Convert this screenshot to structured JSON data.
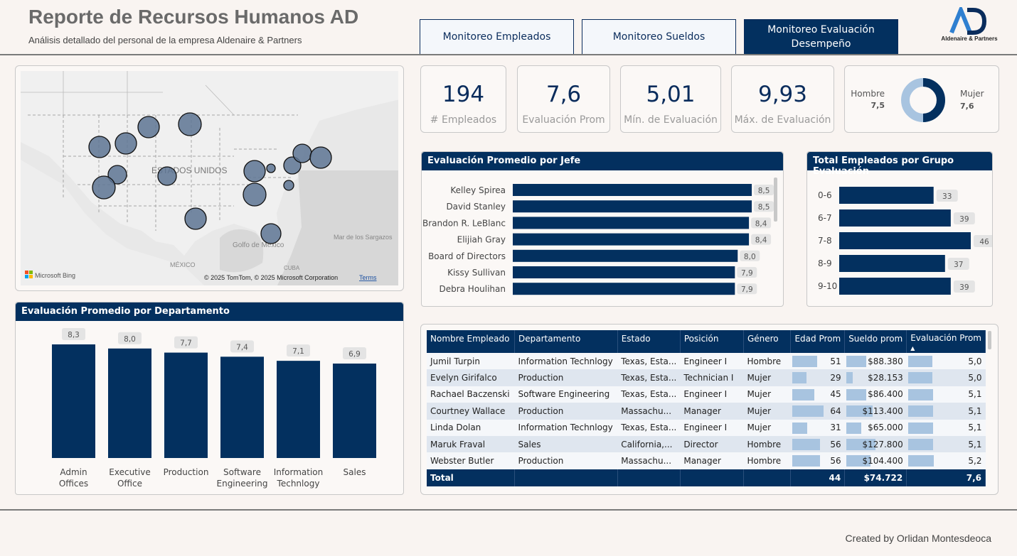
{
  "header": {
    "title": "Reporte de Recursos Humanos AD",
    "subtitle": "Análisis detallado del personal de la empresa Aldenaire & Partners",
    "logo_text": "Aldenaire & Partners",
    "logo_mark": "AD"
  },
  "nav": {
    "tab1": "Monitoreo Empleados",
    "tab2": "Monitoreo Sueldos",
    "tab3_line1": "Monitoreo Evaluación",
    "tab3_line2": "Desempeño"
  },
  "kpis": {
    "employees": {
      "value": "194",
      "label": "# Empleados"
    },
    "avg_eval": {
      "value": "7,6",
      "label": "Evaluación Prom"
    },
    "min_eval": {
      "value": "5,01",
      "label": "Mín. de Evaluación"
    },
    "max_eval": {
      "value": "9,93",
      "label": "Máx. de Evaluación"
    }
  },
  "gender": {
    "male_label": "Hombre",
    "male_value": "7,5",
    "female_label": "Mujer",
    "female_value": "7,6",
    "male_color": "#a8c4e0",
    "female_color": "#03305f"
  },
  "map": {
    "country_label": "ESTADOS UNIDOS",
    "gulf_label": "Golfo de México",
    "mexico_label": "MÉXICO",
    "cuba_label": "CUBA",
    "sea_label": "Mar de los Sargazos",
    "bing_label": "Microsoft Bing",
    "copyright": "© 2025 TomTom, © 2025 Microsoft Corporation",
    "terms": "Terms"
  },
  "chart_data": [
    {
      "type": "bar",
      "orientation": "horizontal",
      "title": "Evaluación Promedio por Jefe",
      "categories": [
        "Kelley Spirea",
        "David Stanley",
        "Brandon R. LeBlanc",
        "Elijiah Gray",
        "Board of Directors",
        "Kissy Sullivan",
        "Debra Houlihan"
      ],
      "values": [
        8.5,
        8.5,
        8.4,
        8.4,
        8.0,
        7.9,
        7.9
      ],
      "labels": [
        "8,5",
        "8,5",
        "8,4",
        "8,4",
        "8,0",
        "7,9",
        "7,9"
      ],
      "color": "#03305f"
    },
    {
      "type": "bar",
      "orientation": "horizontal",
      "title": "Total Empleados por Grupo Evaluación",
      "categories": [
        "0-6",
        "6-7",
        "7-8",
        "8-9",
        "9-10"
      ],
      "values": [
        33,
        39,
        46,
        37,
        39
      ],
      "color": "#03305f"
    },
    {
      "type": "bar",
      "orientation": "vertical",
      "title": "Evaluación Promedio por Departamento",
      "categories": [
        [
          "Admin",
          "Offices"
        ],
        [
          "Executive",
          "Office"
        ],
        [
          "Production"
        ],
        [
          "Software",
          "Engineering"
        ],
        [
          "Information",
          "Technlogy"
        ],
        [
          "Sales"
        ]
      ],
      "values": [
        8.3,
        8.0,
        7.7,
        7.4,
        7.1,
        6.9
      ],
      "labels": [
        "8,3",
        "8,0",
        "7,7",
        "7,4",
        "7,1",
        "6,9"
      ],
      "color": "#03305f"
    }
  ],
  "table": {
    "columns": [
      "Nombre Empleado",
      "Departamento",
      "Estado",
      "Posición",
      "Género",
      "Edad Prom",
      "Sueldo prom",
      "Evaluación Prom"
    ],
    "sort_indicator": "▲",
    "rows": [
      [
        "Jumil Turpin",
        "Information Technlogy",
        "Texas, Esta...",
        "Engineer I",
        "Hombre",
        "51",
        "$88.380",
        "5,0"
      ],
      [
        "Evelyn Girifalco",
        "Production",
        "Texas, Esta...",
        "Technician I",
        "Mujer",
        "29",
        "$28.153",
        "5,0"
      ],
      [
        "Rachael Baczenski",
        "Software Engineering",
        "Texas, Esta...",
        "Engineer I",
        "Mujer",
        "45",
        "$86.400",
        "5,1"
      ],
      [
        "Courtney Wallace",
        "Production",
        "Massachu...",
        "Manager",
        "Mujer",
        "64",
        "$113.400",
        "5,1"
      ],
      [
        "Linda Dolan",
        "Information Technlogy",
        "Texas, Esta...",
        "Engineer I",
        "Mujer",
        "31",
        "$65.000",
        "5,1"
      ],
      [
        "Maruk Fraval",
        "Sales",
        "California,...",
        "Director",
        "Hombre",
        "56",
        "$127.800",
        "5,1"
      ],
      [
        "Webster Butler",
        "Production",
        "Massachu...",
        "Manager",
        "Hombre",
        "56",
        "$104.400",
        "5,2"
      ]
    ],
    "bar_fractions": [
      [
        0.78,
        0.55,
        0.52
      ],
      [
        0.44,
        0.18,
        0.52
      ],
      [
        0.69,
        0.54,
        0.53
      ],
      [
        0.98,
        0.71,
        0.53
      ],
      [
        0.47,
        0.41,
        0.53
      ],
      [
        0.86,
        0.8,
        0.53
      ],
      [
        0.86,
        0.65,
        0.54
      ]
    ],
    "total": {
      "label": "Total",
      "age": "44",
      "salary": "$74.722",
      "eval": "7,6"
    }
  },
  "footer": {
    "credit": "Created by Orlidan Montesdeoca"
  }
}
